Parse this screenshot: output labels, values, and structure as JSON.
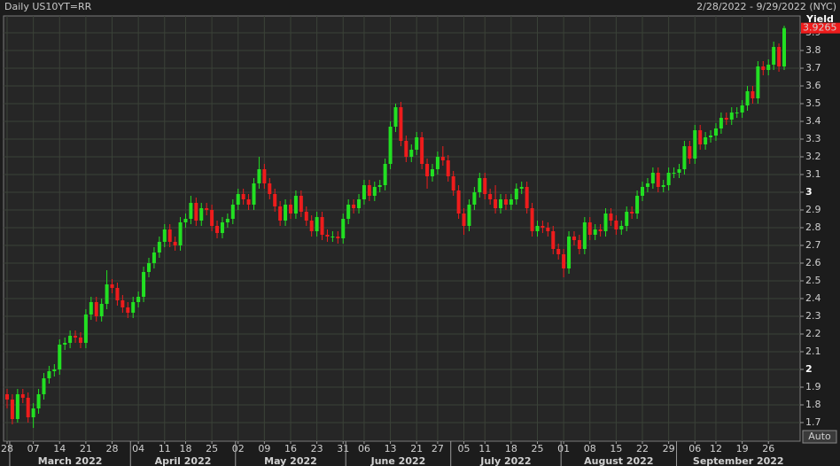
{
  "chart_data": {
    "type": "candlestick",
    "title": "Daily US10YT=RR",
    "subtitle": "2/28/2022 - 9/29/2022 (NYC)",
    "y_axis_label": "Yield",
    "button": "Auto",
    "months": [
      "March 2022",
      "April 2022",
      "May 2022",
      "June 2022",
      "July 2022",
      "August 2022",
      "September 2022"
    ],
    "categories": [
      "28",
      null,
      null,
      null,
      null,
      "07",
      null,
      null,
      null,
      null,
      "14",
      null,
      null,
      null,
      null,
      "21",
      null,
      null,
      null,
      null,
      "28",
      null,
      null,
      null,
      null,
      "04",
      null,
      null,
      null,
      null,
      "11",
      null,
      null,
      null,
      "18",
      null,
      null,
      null,
      null,
      "25",
      null,
      null,
      null,
      null,
      "02",
      null,
      null,
      null,
      null,
      "09",
      null,
      null,
      null,
      null,
      "16",
      null,
      null,
      null,
      null,
      "23",
      null,
      null,
      null,
      null,
      "31",
      null,
      null,
      null,
      "06",
      null,
      null,
      null,
      null,
      "13",
      null,
      null,
      null,
      null,
      "21",
      null,
      null,
      null,
      "27",
      null,
      null,
      null,
      null,
      "05",
      null,
      null,
      null,
      "11",
      null,
      null,
      null,
      null,
      "18",
      null,
      null,
      null,
      null,
      "25",
      null,
      null,
      null,
      null,
      "01",
      null,
      null,
      null,
      null,
      "08",
      null,
      null,
      null,
      null,
      "15",
      null,
      null,
      null,
      null,
      "22",
      null,
      null,
      null,
      null,
      "29",
      null,
      null,
      null,
      null,
      "06",
      null,
      null,
      null,
      "12",
      null,
      null,
      null,
      null,
      "19",
      null,
      null,
      null,
      null,
      "26",
      null,
      null,
      null
    ],
    "open": [
      1.86,
      1.83,
      1.72,
      1.86,
      1.84,
      1.73,
      1.78,
      1.86,
      1.95,
      1.99,
      2.0,
      2.14,
      2.15,
      2.19,
      2.18,
      2.15,
      2.31,
      2.38,
      2.3,
      2.37,
      2.48,
      2.46,
      2.39,
      2.35,
      2.32,
      2.38,
      2.41,
      2.55,
      2.6,
      2.66,
      2.72,
      2.79,
      2.72,
      2.7,
      2.83,
      2.85,
      2.94,
      2.84,
      2.91,
      2.9,
      2.81,
      2.77,
      2.83,
      2.85,
      2.93,
      2.99,
      2.96,
      2.93,
      3.05,
      3.13,
      3.05,
      2.99,
      2.92,
      2.84,
      2.93,
      2.88,
      2.98,
      2.89,
      2.84,
      2.78,
      2.86,
      2.76,
      2.75,
      2.75,
      2.74,
      2.85,
      2.93,
      2.91,
      2.96,
      3.04,
      2.98,
      3.03,
      3.04,
      3.16,
      3.37,
      3.48,
      3.29,
      3.2,
      3.24,
      3.31,
      3.16,
      3.09,
      3.13,
      3.2,
      3.18,
      3.09,
      3.01,
      2.88,
      2.81,
      2.93,
      3.0,
      3.08,
      2.99,
      2.96,
      2.91,
      2.96,
      2.93,
      2.96,
      3.02,
      3.03,
      2.91,
      2.78,
      2.81,
      2.8,
      2.78,
      2.68,
      2.65,
      2.57,
      2.75,
      2.73,
      2.68,
      2.83,
      2.76,
      2.79,
      2.78,
      2.88,
      2.84,
      2.79,
      2.81,
      2.89,
      2.88,
      2.98,
      3.03,
      3.05,
      3.11,
      3.03,
      3.04,
      3.11,
      3.11,
      3.13,
      3.26,
      3.19,
      3.35,
      3.27,
      3.31,
      3.32,
      3.36,
      3.42,
      3.41,
      3.45,
      3.45,
      3.49,
      3.57,
      3.53,
      3.71,
      3.69,
      3.72,
      3.82,
      3.71
    ],
    "high": [
      1.89,
      1.86,
      1.89,
      1.89,
      1.87,
      1.81,
      1.89,
      1.98,
      2.02,
      2.03,
      2.17,
      2.18,
      2.22,
      2.22,
      2.21,
      2.34,
      2.41,
      2.41,
      2.4,
      2.56,
      2.51,
      2.49,
      2.42,
      2.38,
      2.41,
      2.44,
      2.58,
      2.63,
      2.69,
      2.75,
      2.82,
      2.82,
      2.75,
      2.86,
      2.88,
      2.98,
      2.97,
      2.94,
      2.94,
      2.93,
      2.84,
      2.86,
      2.88,
      2.96,
      3.02,
      3.02,
      2.99,
      3.08,
      3.2,
      3.16,
      3.08,
      3.02,
      2.95,
      2.96,
      2.96,
      3.01,
      3.01,
      2.92,
      2.87,
      2.89,
      2.89,
      2.79,
      2.78,
      2.78,
      2.88,
      2.96,
      2.96,
      2.99,
      3.07,
      3.07,
      3.06,
      3.07,
      3.19,
      3.4,
      3.5,
      3.51,
      3.32,
      3.27,
      3.34,
      3.34,
      3.19,
      3.16,
      3.23,
      3.26,
      3.21,
      3.12,
      3.04,
      2.91,
      2.96,
      3.03,
      3.11,
      3.11,
      3.02,
      3.04,
      2.99,
      2.99,
      2.99,
      3.05,
      3.06,
      3.06,
      2.94,
      2.84,
      2.84,
      2.83,
      2.81,
      2.71,
      2.68,
      2.78,
      2.78,
      2.76,
      2.86,
      2.86,
      2.82,
      2.82,
      2.91,
      2.91,
      2.87,
      2.84,
      2.92,
      2.92,
      3.01,
      3.06,
      3.08,
      3.14,
      3.14,
      3.07,
      3.14,
      3.14,
      3.16,
      3.29,
      3.29,
      3.38,
      3.38,
      3.34,
      3.35,
      3.39,
      3.45,
      3.45,
      3.48,
      3.48,
      3.52,
      3.6,
      3.6,
      3.74,
      3.74,
      3.75,
      3.85,
      3.84,
      3.94
    ],
    "low": [
      1.78,
      1.69,
      1.7,
      1.81,
      1.7,
      1.67,
      1.75,
      1.83,
      1.92,
      1.96,
      1.97,
      2.11,
      2.12,
      2.15,
      2.12,
      2.12,
      2.28,
      2.27,
      2.27,
      2.34,
      2.43,
      2.36,
      2.32,
      2.29,
      2.29,
      2.35,
      2.38,
      2.52,
      2.57,
      2.63,
      2.69,
      2.69,
      2.67,
      2.67,
      2.8,
      2.82,
      2.81,
      2.81,
      2.87,
      2.78,
      2.74,
      2.74,
      2.8,
      2.82,
      2.9,
      2.93,
      2.9,
      2.9,
      3.02,
      3.02,
      2.96,
      2.89,
      2.81,
      2.81,
      2.85,
      2.85,
      2.86,
      2.81,
      2.75,
      2.75,
      2.73,
      2.72,
      2.72,
      2.71,
      2.71,
      2.82,
      2.88,
      2.88,
      2.93,
      2.95,
      2.95,
      3.0,
      3.01,
      3.13,
      3.34,
      3.26,
      3.17,
      3.17,
      3.21,
      3.13,
      3.02,
      3.06,
      3.1,
      3.15,
      3.06,
      2.98,
      2.85,
      2.76,
      2.78,
      2.9,
      2.97,
      2.96,
      2.93,
      2.88,
      2.88,
      2.9,
      2.9,
      2.93,
      2.99,
      2.88,
      2.75,
      2.75,
      2.77,
      2.75,
      2.65,
      2.62,
      2.52,
      2.54,
      2.7,
      2.65,
      2.65,
      2.73,
      2.73,
      2.75,
      2.75,
      2.81,
      2.76,
      2.76,
      2.78,
      2.85,
      2.85,
      2.95,
      3.0,
      3.02,
      3.0,
      3.0,
      3.01,
      3.08,
      3.08,
      3.1,
      3.16,
      3.16,
      3.24,
      3.24,
      3.28,
      3.29,
      3.33,
      3.38,
      3.38,
      3.42,
      3.42,
      3.46,
      3.5,
      3.5,
      3.66,
      3.66,
      3.69,
      3.68,
      3.69
    ],
    "close": [
      1.83,
      1.72,
      1.86,
      1.84,
      1.73,
      1.78,
      1.86,
      1.95,
      1.99,
      2.0,
      2.14,
      2.15,
      2.19,
      2.18,
      2.15,
      2.31,
      2.38,
      2.3,
      2.37,
      2.48,
      2.46,
      2.39,
      2.35,
      2.32,
      2.38,
      2.41,
      2.55,
      2.6,
      2.66,
      2.72,
      2.79,
      2.72,
      2.7,
      2.83,
      2.85,
      2.94,
      2.84,
      2.91,
      2.9,
      2.81,
      2.77,
      2.83,
      2.85,
      2.93,
      2.99,
      2.96,
      2.93,
      3.05,
      3.13,
      3.05,
      2.99,
      2.92,
      2.84,
      2.93,
      2.88,
      2.98,
      2.89,
      2.84,
      2.78,
      2.86,
      2.76,
      2.75,
      2.75,
      2.74,
      2.85,
      2.93,
      2.91,
      2.96,
      3.04,
      2.98,
      3.03,
      3.04,
      3.16,
      3.37,
      3.48,
      3.29,
      3.2,
      3.24,
      3.31,
      3.16,
      3.09,
      3.13,
      3.2,
      3.18,
      3.09,
      3.01,
      2.88,
      2.81,
      2.93,
      3.0,
      3.08,
      2.99,
      2.96,
      2.91,
      2.96,
      2.93,
      2.96,
      3.02,
      3.03,
      2.91,
      2.78,
      2.81,
      2.8,
      2.78,
      2.68,
      2.65,
      2.57,
      2.75,
      2.73,
      2.68,
      2.83,
      2.76,
      2.79,
      2.78,
      2.88,
      2.84,
      2.79,
      2.81,
      2.89,
      2.88,
      2.98,
      3.03,
      3.05,
      3.11,
      3.03,
      3.04,
      3.11,
      3.11,
      3.13,
      3.26,
      3.19,
      3.35,
      3.27,
      3.31,
      3.32,
      3.36,
      3.42,
      3.41,
      3.45,
      3.45,
      3.49,
      3.57,
      3.53,
      3.71,
      3.69,
      3.72,
      3.82,
      3.71,
      3.9265
    ],
    "up_color": "#22e022",
    "down_color": "#ee1c1c",
    "last_price_color": "#ee1c1c",
    "ylim": [
      1.595,
      3.995
    ],
    "yticks": [
      1.7,
      1.8,
      1.9,
      2,
      2.1,
      2.2,
      2.3,
      2.4,
      2.5,
      2.6,
      2.7,
      2.8,
      2.9,
      3,
      3.1,
      3.2,
      3.3,
      3.4,
      3.5,
      3.6,
      3.7,
      3.8,
      3.9
    ],
    "grid": true
  }
}
